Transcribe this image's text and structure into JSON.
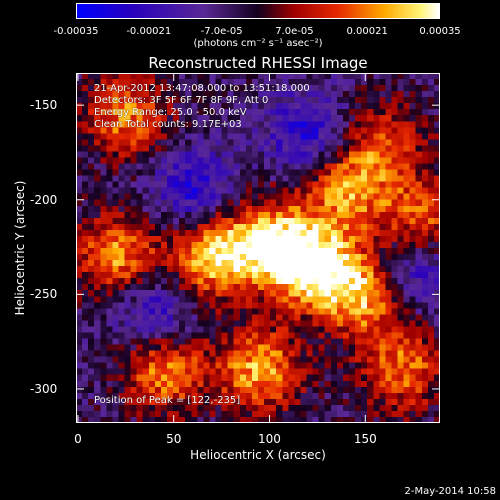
{
  "colorbar": {
    "ticks": [
      "-0.00035",
      "-0.00021",
      "-7.0e-05",
      "7.0e-05",
      "0.00021",
      "0.00035"
    ],
    "unit": "(photons cm⁻² s⁻¹ asec⁻²)",
    "range": [
      -0.00035,
      0.00035
    ]
  },
  "chart_data": {
    "type": "heatmap",
    "title": "Reconstructed RHESSI Image",
    "xlabel": "Heliocentric X (arcsec)",
    "ylabel": "Heliocentric Y (arcsec)",
    "xlim": [
      -1,
      189
    ],
    "ylim": [
      -318,
      -133
    ],
    "xticks": [
      "0",
      "50",
      "100",
      "150"
    ],
    "yticks": [
      "-150",
      "-200",
      "-250",
      "-300"
    ],
    "annotations": [
      "21-Apr-2012 13:47:08.000 to 13:51:18.000",
      "Detectors: 3F 5F 6F 7F 8F 9F, Att 0",
      "Energy Range: 25.0 - 50.0 keV",
      "Clean    Total counts: 9.17E+03"
    ],
    "peak_label": "Position of Peak = [122,-235]",
    "peak": [
      122,
      -235
    ],
    "hot_regions": [
      {
        "x": 122,
        "y": -235,
        "value": 1.0
      },
      {
        "x": 70,
        "y": -230,
        "value": 0.9
      },
      {
        "x": 100,
        "y": -222,
        "value": 0.8
      },
      {
        "x": 150,
        "y": -250,
        "value": 0.85
      },
      {
        "x": 95,
        "y": -290,
        "value": 0.8
      },
      {
        "x": 45,
        "y": -290,
        "value": 0.75
      },
      {
        "x": 140,
        "y": -195,
        "value": 0.7
      },
      {
        "x": 25,
        "y": -155,
        "value": 0.7
      },
      {
        "x": 20,
        "y": -230,
        "value": 0.75
      },
      {
        "x": 170,
        "y": -290,
        "value": 0.65
      },
      {
        "x": 180,
        "y": -210,
        "value": 0.6
      },
      {
        "x": 160,
        "y": -170,
        "value": 0.55
      }
    ],
    "cool_regions": [
      {
        "x": 40,
        "y": -260
      },
      {
        "x": 120,
        "y": -165
      },
      {
        "x": 60,
        "y": -195
      },
      {
        "x": 175,
        "y": -240
      }
    ]
  },
  "footer": "2-May-2014 10:58"
}
